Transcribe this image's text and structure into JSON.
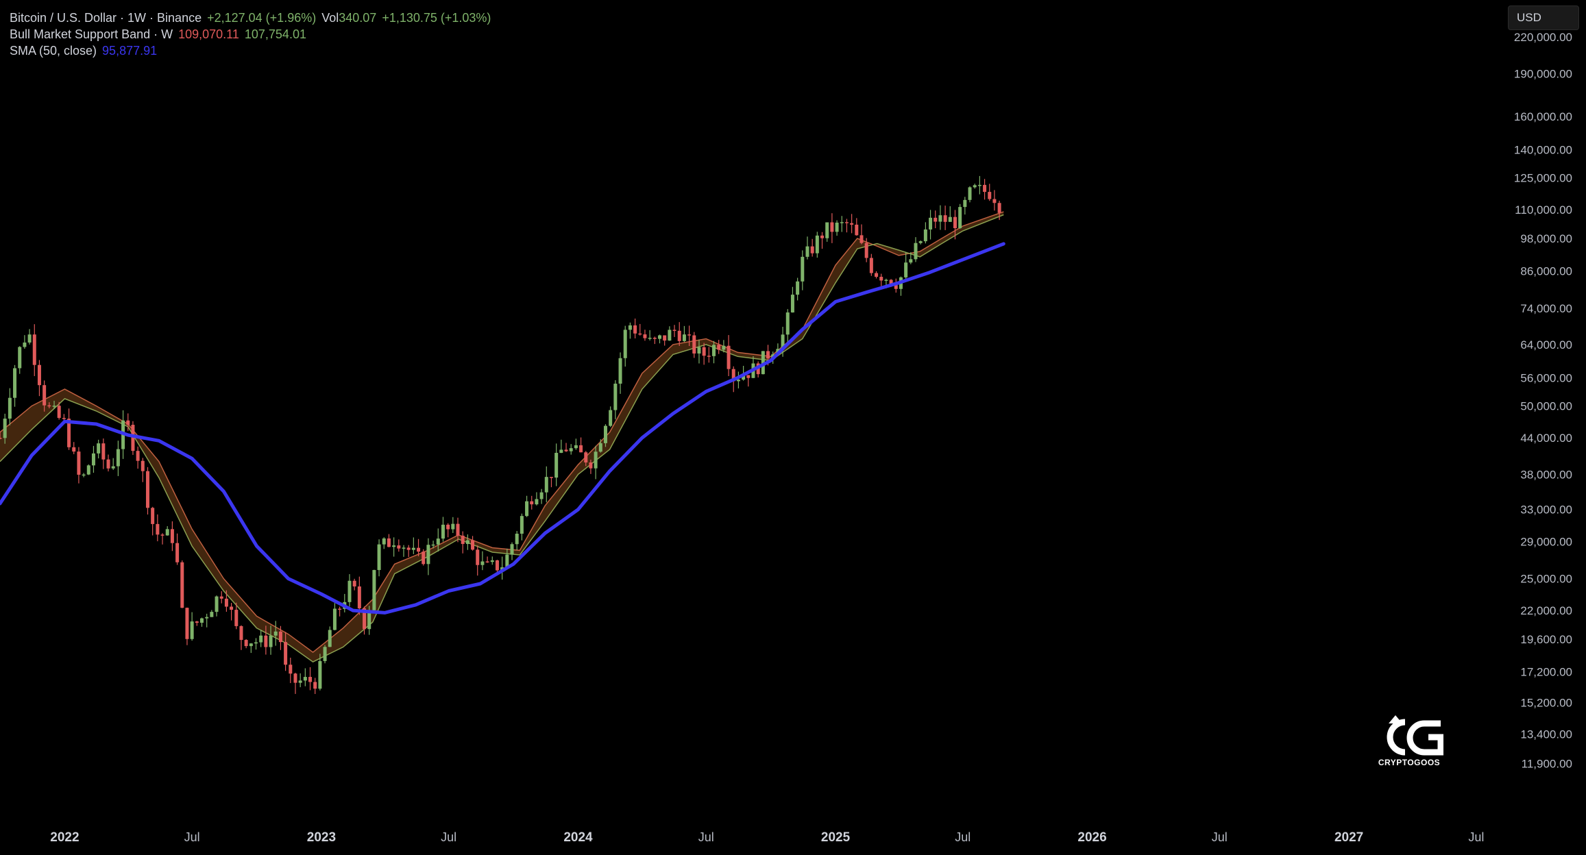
{
  "legend": {
    "symbol": "Bitcoin / U.S. Dollar · 1W · Binance",
    "change": "+2,127.04 (+1.96%)",
    "vol_label": "Vol",
    "vol_value": "340.07",
    "vol_change": "+1,130.75 (+1.03%)",
    "band_label": "Bull Market Support Band · W",
    "band_value1": "109,070.11",
    "band_value2": "107,754.01",
    "sma_label": "SMA (50, close)",
    "sma_value": "95,877.91"
  },
  "currency": "USD",
  "watermark": {
    "text": "CRYPTOGOOS"
  },
  "colors": {
    "up": "#7fb36a",
    "down": "#e05a5a",
    "sma": "#3b36f0",
    "band_fill": "#4a2a10",
    "band_line1": "#c06040",
    "band_line2": "#8aa050",
    "background": "#000000"
  },
  "chart_data": {
    "type": "line",
    "scale": "log",
    "ylim": [
      10500,
      235000
    ],
    "xlim": [
      "2021-10-01",
      "2027-08-15"
    ],
    "y_ticks": [
      220000,
      190000,
      160000,
      140000,
      125000,
      110000,
      98000,
      86000,
      74000,
      64000,
      56000,
      50000,
      44000,
      38000,
      33000,
      29000,
      25000,
      22000,
      19600,
      17200,
      15200,
      13400,
      11900
    ],
    "y_tick_labels": [
      "220,000.00",
      "190,000.00",
      "160,000.00",
      "140,000.00",
      "125,000.00",
      "110,000.00",
      "98,000.00",
      "86,000.00",
      "74,000.00",
      "64,000.00",
      "56,000.00",
      "50,000.00",
      "44,000.00",
      "38,000.00",
      "33,000.00",
      "29,000.00",
      "25,000.00",
      "22,000.00",
      "19,600.00",
      "17,200.00",
      "15,200.00",
      "13,400.00",
      "11,900.00"
    ],
    "x_ticks": [
      {
        "date": "2022-01-01",
        "label": "2022",
        "major": true
      },
      {
        "date": "2022-07-01",
        "label": "Jul",
        "major": false
      },
      {
        "date": "2023-01-01",
        "label": "2023",
        "major": true
      },
      {
        "date": "2023-07-01",
        "label": "Jul",
        "major": false
      },
      {
        "date": "2024-01-01",
        "label": "2024",
        "major": true
      },
      {
        "date": "2024-07-01",
        "label": "Jul",
        "major": false
      },
      {
        "date": "2025-01-01",
        "label": "2025",
        "major": true
      },
      {
        "date": "2025-07-01",
        "label": "Jul",
        "major": false
      },
      {
        "date": "2026-01-01",
        "label": "2026",
        "major": true
      },
      {
        "date": "2026-07-01",
        "label": "Jul",
        "major": false
      },
      {
        "date": "2027-01-01",
        "label": "2027",
        "major": true
      },
      {
        "date": "2027-07-01",
        "label": "Jul",
        "major": false
      }
    ],
    "price_path": [
      [
        "2021-10-01",
        44000
      ],
      [
        "2021-10-25",
        61000
      ],
      [
        "2021-11-10",
        68000
      ],
      [
        "2021-12-05",
        50000
      ],
      [
        "2022-01-01",
        46500
      ],
      [
        "2022-01-24",
        36500
      ],
      [
        "2022-02-14",
        42500
      ],
      [
        "2022-03-07",
        38500
      ],
      [
        "2022-03-28",
        47000
      ],
      [
        "2022-04-18",
        40000
      ],
      [
        "2022-05-09",
        30000
      ],
      [
        "2022-06-06",
        29500
      ],
      [
        "2022-06-20",
        20000
      ],
      [
        "2022-07-18",
        21500
      ],
      [
        "2022-08-15",
        24000
      ],
      [
        "2022-09-05",
        19800
      ],
      [
        "2022-10-10",
        19300
      ],
      [
        "2022-11-01",
        20500
      ],
      [
        "2022-11-14",
        16500
      ],
      [
        "2022-12-26",
        16600
      ],
      [
        "2023-01-16",
        21000
      ],
      [
        "2023-02-13",
        24500
      ],
      [
        "2023-03-06",
        20500
      ],
      [
        "2023-03-20",
        28000
      ],
      [
        "2023-04-17",
        29500
      ],
      [
        "2023-05-22",
        26800
      ],
      [
        "2023-06-19",
        30500
      ],
      [
        "2023-07-17",
        30000
      ],
      [
        "2023-08-21",
        26000
      ],
      [
        "2023-09-18",
        26500
      ],
      [
        "2023-10-23",
        34500
      ],
      [
        "2023-11-20",
        37500
      ],
      [
        "2023-12-11",
        42500
      ],
      [
        "2024-01-22",
        40000
      ],
      [
        "2024-02-19",
        52000
      ],
      [
        "2024-03-11",
        70000
      ],
      [
        "2024-04-15",
        64000
      ],
      [
        "2024-05-20",
        68000
      ],
      [
        "2024-06-24",
        61000
      ],
      [
        "2024-07-29",
        66000
      ],
      [
        "2024-08-05",
        56000
      ],
      [
        "2024-09-09",
        58000
      ],
      [
        "2024-10-21",
        67000
      ],
      [
        "2024-11-11",
        88000
      ],
      [
        "2024-12-16",
        101000
      ],
      [
        "2025-01-20",
        104000
      ],
      [
        "2025-02-24",
        86000
      ],
      [
        "2025-03-31",
        82000
      ],
      [
        "2025-04-28",
        95000
      ],
      [
        "2025-05-19",
        106000
      ],
      [
        "2025-06-23",
        105000
      ],
      [
        "2025-07-14",
        119000
      ],
      [
        "2025-08-11",
        118000
      ],
      [
        "2025-08-25",
        111000
      ]
    ],
    "sma": [
      [
        "2021-10-01",
        33800
      ],
      [
        "2021-11-15",
        41000
      ],
      [
        "2022-01-01",
        47000
      ],
      [
        "2022-02-15",
        46500
      ],
      [
        "2022-04-01",
        44500
      ],
      [
        "2022-05-15",
        43500
      ],
      [
        "2022-07-01",
        40500
      ],
      [
        "2022-08-15",
        35500
      ],
      [
        "2022-10-01",
        28500
      ],
      [
        "2022-11-15",
        25000
      ],
      [
        "2023-01-01",
        23500
      ],
      [
        "2023-02-15",
        22000
      ],
      [
        "2023-04-01",
        21800
      ],
      [
        "2023-05-15",
        22500
      ],
      [
        "2023-07-01",
        23800
      ],
      [
        "2023-08-15",
        24500
      ],
      [
        "2023-10-01",
        26500
      ],
      [
        "2023-11-15",
        30000
      ],
      [
        "2024-01-01",
        33000
      ],
      [
        "2024-02-15",
        38500
      ],
      [
        "2024-04-01",
        44000
      ],
      [
        "2024-05-15",
        48500
      ],
      [
        "2024-07-01",
        53000
      ],
      [
        "2024-08-15",
        56000
      ],
      [
        "2024-10-01",
        60000
      ],
      [
        "2024-11-15",
        68000
      ],
      [
        "2025-01-01",
        76000
      ],
      [
        "2025-02-15",
        79000
      ],
      [
        "2025-04-01",
        82000
      ],
      [
        "2025-05-15",
        85500
      ],
      [
        "2025-07-01",
        90000
      ],
      [
        "2025-08-28",
        95877.91
      ]
    ],
    "band_upper": [
      [
        "2021-10-01",
        45000
      ],
      [
        "2021-11-15",
        50000
      ],
      [
        "2022-01-01",
        53500
      ],
      [
        "2022-02-15",
        50000
      ],
      [
        "2022-04-01",
        46500
      ],
      [
        "2022-05-15",
        40000
      ],
      [
        "2022-07-01",
        30500
      ],
      [
        "2022-08-15",
        25000
      ],
      [
        "2022-10-01",
        21500
      ],
      [
        "2022-11-15",
        20000
      ],
      [
        "2022-12-20",
        18600
      ],
      [
        "2023-02-01",
        20500
      ],
      [
        "2023-03-15",
        23000
      ],
      [
        "2023-04-15",
        26500
      ],
      [
        "2023-06-01",
        28000
      ],
      [
        "2023-07-15",
        29800
      ],
      [
        "2023-09-01",
        28300
      ],
      [
        "2023-10-10",
        28000
      ],
      [
        "2023-11-15",
        33500
      ],
      [
        "2024-01-01",
        39500
      ],
      [
        "2024-02-15",
        45000
      ],
      [
        "2024-04-01",
        57000
      ],
      [
        "2024-05-15",
        64000
      ],
      [
        "2024-07-01",
        65500
      ],
      [
        "2024-08-15",
        62000
      ],
      [
        "2024-10-01",
        61000
      ],
      [
        "2024-11-15",
        68000
      ],
      [
        "2025-01-01",
        88000
      ],
      [
        "2025-02-01",
        98000
      ],
      [
        "2025-03-01",
        95000
      ],
      [
        "2025-04-01",
        91500
      ],
      [
        "2025-05-01",
        93000
      ],
      [
        "2025-06-01",
        98000
      ],
      [
        "2025-07-01",
        103000
      ],
      [
        "2025-08-28",
        109070.11
      ]
    ],
    "band_lower": [
      [
        "2021-10-01",
        40000
      ],
      [
        "2021-11-15",
        45500
      ],
      [
        "2022-01-01",
        51500
      ],
      [
        "2022-02-15",
        49000
      ],
      [
        "2022-04-01",
        46000
      ],
      [
        "2022-05-15",
        37500
      ],
      [
        "2022-07-01",
        28500
      ],
      [
        "2022-08-15",
        23800
      ],
      [
        "2022-10-01",
        20500
      ],
      [
        "2022-11-15",
        19200
      ],
      [
        "2022-12-20",
        17900
      ],
      [
        "2023-02-01",
        19000
      ],
      [
        "2023-03-15",
        21000
      ],
      [
        "2023-04-15",
        25500
      ],
      [
        "2023-06-01",
        27300
      ],
      [
        "2023-07-15",
        29300
      ],
      [
        "2023-09-01",
        27800
      ],
      [
        "2023-10-10",
        27500
      ],
      [
        "2023-11-15",
        31500
      ],
      [
        "2024-01-01",
        38000
      ],
      [
        "2024-02-15",
        42000
      ],
      [
        "2024-04-01",
        53500
      ],
      [
        "2024-05-15",
        61500
      ],
      [
        "2024-07-01",
        64000
      ],
      [
        "2024-08-15",
        61000
      ],
      [
        "2024-10-01",
        60000
      ],
      [
        "2024-11-15",
        65500
      ],
      [
        "2025-01-01",
        82000
      ],
      [
        "2025-02-01",
        94000
      ],
      [
        "2025-03-01",
        96000
      ],
      [
        "2025-04-01",
        93500
      ],
      [
        "2025-05-01",
        91000
      ],
      [
        "2025-06-01",
        96000
      ],
      [
        "2025-07-01",
        101000
      ],
      [
        "2025-08-28",
        107754.01
      ]
    ]
  }
}
